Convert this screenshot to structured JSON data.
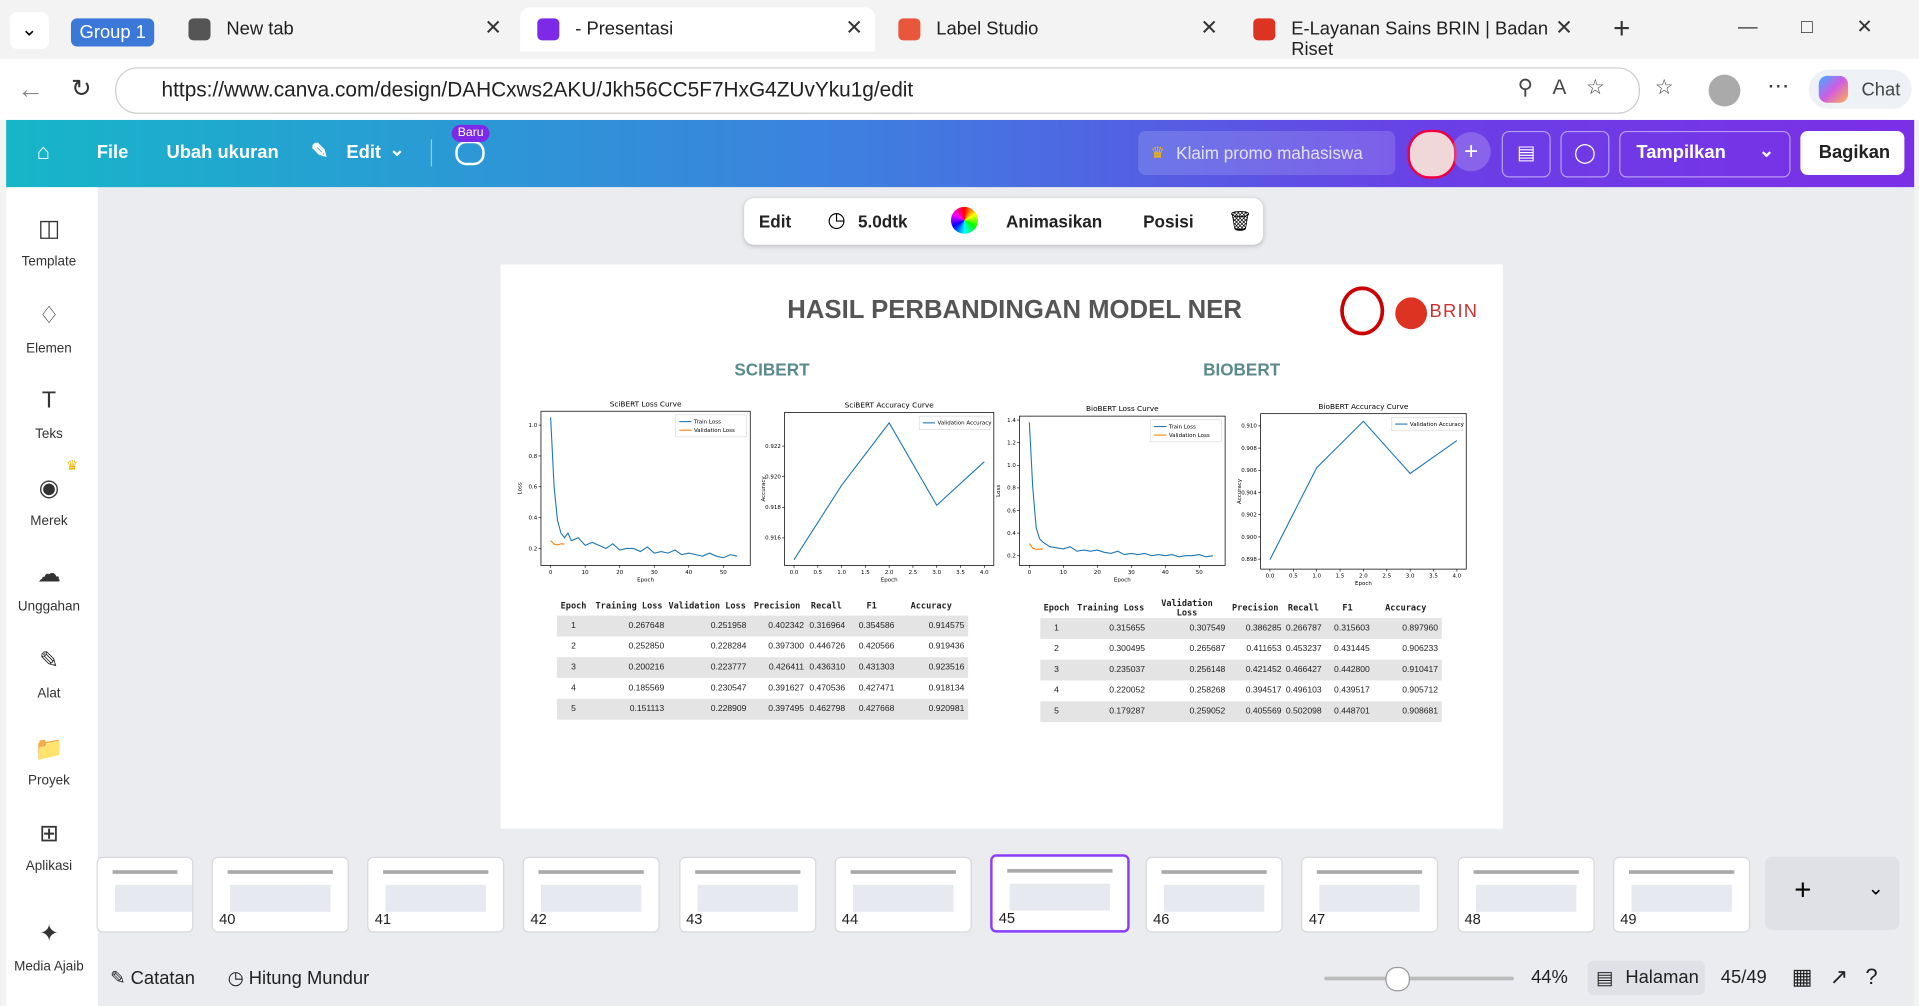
{
  "browser": {
    "tab_group": "Group 1",
    "tabs": [
      "New tab",
      "- Presentasi",
      "Label Studio",
      "E-Layanan Sains BRIN | Badan Riset"
    ],
    "url": "https://www.canva.com/design/DAHCxws2AKU/Jkh56CC5F7HxG4ZUvYku1g/edit",
    "chat": "Chat"
  },
  "editor": {
    "menu": [
      "File",
      "Ubah ukuran",
      "Edit"
    ],
    "badge": "Baru",
    "promo": "Klaim promo mahasiswa",
    "present": "Tampilkan",
    "share": "Bagikan",
    "element_toolbar": [
      "Edit",
      "5.0dtk",
      "Animasikan",
      "Posisi"
    ],
    "sidebar": [
      "Template",
      "Elemen",
      "Teks",
      "Merek",
      "Unggahan",
      "Alat",
      "Proyek",
      "Aplikasi",
      "Media Ajaib"
    ]
  },
  "slide": {
    "title": "HASIL PERBANDINGAN MODEL NER",
    "logo": "BRIN",
    "sections": [
      "SCIBERT",
      "BIOBERT"
    ],
    "table_columns": [
      "Epoch",
      "Training Loss",
      "Validation Loss",
      "Precision",
      "Recall",
      "F1",
      "Accuracy"
    ],
    "tables": [
      [
        [
          "1",
          "0.267648",
          "0.251958",
          "0.402342",
          "0.316964",
          "0.354586",
          "0.914575"
        ],
        [
          "2",
          "0.252850",
          "0.228284",
          "0.397300",
          "0.446726",
          "0.420566",
          "0.919436"
        ],
        [
          "3",
          "0.200216",
          "0.223777",
          "0.426411",
          "0.436310",
          "0.431303",
          "0.923516"
        ],
        [
          "4",
          "0.185569",
          "0.230547",
          "0.391627",
          "0.470536",
          "0.427471",
          "0.918134"
        ],
        [
          "5",
          "0.151113",
          "0.228909",
          "0.397495",
          "0.462798",
          "0.427668",
          "0.920981"
        ]
      ],
      [
        [
          "1",
          "0.315655",
          "0.307549",
          "0.386285",
          "0.266787",
          "0.315603",
          "0.897960"
        ],
        [
          "2",
          "0.300495",
          "0.265687",
          "0.411653",
          "0.453237",
          "0.431445",
          "0.906233"
        ],
        [
          "3",
          "0.235037",
          "0.256148",
          "0.421452",
          "0.466427",
          "0.442800",
          "0.910417"
        ],
        [
          "4",
          "0.220052",
          "0.258268",
          "0.394517",
          "0.496103",
          "0.439517",
          "0.905712"
        ],
        [
          "5",
          "0.179287",
          "0.259052",
          "0.405569",
          "0.502098",
          "0.448701",
          "0.908681"
        ]
      ]
    ]
  },
  "chart_data": [
    {
      "type": "line",
      "title": "SciBERT Loss Curve",
      "x_label": "Epoch",
      "y_label": "Loss",
      "legend": "upper right",
      "xlim": [
        -2.8,
        57.8
      ],
      "ylim": [
        0.09,
        1.09
      ],
      "xticks": [
        0,
        10,
        20,
        30,
        40,
        50
      ],
      "yticks": [
        0.2,
        0.4,
        0.6,
        0.8,
        {
          "value": 1,
          "label": "1.0"
        }
      ],
      "series": [
        {
          "name": "Train Loss",
          "color": "#1f77b4",
          "x": [
            0,
            1,
            2,
            3,
            4,
            5,
            6,
            8,
            10,
            12,
            14,
            16,
            18,
            20,
            22,
            24,
            26,
            28,
            30,
            32,
            34,
            36,
            38,
            40,
            42,
            44,
            46,
            48,
            50,
            52,
            54
          ],
          "values": [
            1.05,
            0.6,
            0.38,
            0.3,
            0.27,
            0.3,
            0.25,
            0.27,
            0.22,
            0.24,
            0.22,
            0.2,
            0.23,
            0.19,
            0.2,
            0.2,
            0.18,
            0.21,
            0.17,
            0.18,
            0.17,
            0.19,
            0.16,
            0.17,
            0.16,
            0.15,
            0.17,
            0.15,
            0.14,
            0.16,
            0.15
          ]
        },
        {
          "name": "Validation Loss",
          "color": "#ff7f0e",
          "x": [
            0,
            1,
            2,
            3,
            4
          ],
          "values": [
            0.251958,
            0.228284,
            0.223777,
            0.230547,
            0.228909
          ]
        }
      ]
    },
    {
      "type": "line",
      "title": "SciBERT Accuracy Curve",
      "x_label": "Epoch",
      "y_label": "Accuracy",
      "legend": "upper right",
      "xlim": [
        -0.2,
        4.2
      ],
      "ylim": [
        0.9142,
        0.9242
      ],
      "xticks": [
        {
          "value": 0,
          "label": "0.0"
        },
        0.5,
        {
          "value": 1,
          "label": "1.0"
        },
        1.5,
        {
          "value": 2,
          "label": "2.0"
        },
        2.5,
        {
          "value": 3,
          "label": "3.0"
        },
        3.5,
        {
          "value": 4,
          "label": "4.0"
        }
      ],
      "yticks": [
        0.916,
        0.918,
        {
          "value": 0.92,
          "label": "0.920"
        },
        0.922
      ],
      "series": [
        {
          "name": "Validation Accuracy",
          "color": "#1f77b4",
          "x": [
            0,
            1,
            2,
            3,
            4
          ],
          "values": [
            0.914575,
            0.919436,
            0.923516,
            0.918134,
            0.920981
          ]
        }
      ]
    },
    {
      "type": "line",
      "title": "BioBERT Loss Curve",
      "x_label": "Epoch",
      "y_label": "Loss",
      "legend": "upper right",
      "xlim": [
        -2.9,
        57.6
      ],
      "ylim": [
        0.114,
        1.435
      ],
      "xticks": [
        0,
        10,
        20,
        30,
        40,
        50
      ],
      "yticks": [
        0.2,
        0.4,
        0.6,
        0.8,
        {
          "value": 1,
          "label": "1.0"
        },
        1.2,
        1.4
      ],
      "series": [
        {
          "name": "Train Loss",
          "color": "#1f77b4",
          "x": [
            0,
            1,
            2,
            3,
            4,
            5,
            6,
            8,
            10,
            12,
            14,
            16,
            18,
            20,
            22,
            24,
            26,
            28,
            30,
            32,
            34,
            36,
            38,
            40,
            42,
            44,
            46,
            48,
            50,
            52,
            54
          ],
          "values": [
            1.38,
            0.8,
            0.45,
            0.35,
            0.32,
            0.3,
            0.28,
            0.27,
            0.26,
            0.28,
            0.24,
            0.25,
            0.24,
            0.25,
            0.23,
            0.22,
            0.24,
            0.21,
            0.22,
            0.21,
            0.22,
            0.2,
            0.21,
            0.2,
            0.21,
            0.19,
            0.2,
            0.2,
            0.21,
            0.19,
            0.2
          ]
        },
        {
          "name": "Validation Loss",
          "color": "#ff7f0e",
          "x": [
            0,
            1,
            2,
            3,
            4
          ],
          "values": [
            0.307549,
            0.265687,
            0.256148,
            0.258268,
            0.259052
          ]
        }
      ]
    },
    {
      "type": "line",
      "title": "BioBERT Accuracy Curve",
      "x_label": "Epoch",
      "y_label": "Accuracy",
      "legend": "upper right",
      "xlim": [
        -0.2,
        4.2
      ],
      "ylim": [
        0.8971,
        0.9111
      ],
      "xticks": [
        {
          "value": 0,
          "label": "0.0"
        },
        0.5,
        {
          "value": 1,
          "label": "1.0"
        },
        1.5,
        {
          "value": 2,
          "label": "2.0"
        },
        2.5,
        {
          "value": 3,
          "label": "3.0"
        },
        3.5,
        {
          "value": 4,
          "label": "4.0"
        }
      ],
      "yticks": [
        0.898,
        {
          "value": 0.9,
          "label": "0.900"
        },
        0.902,
        0.904,
        0.906,
        0.908,
        {
          "value": 0.91,
          "label": "0.910"
        }
      ],
      "series": [
        {
          "name": "Validation Accuracy",
          "color": "#1f77b4",
          "x": [
            0,
            1,
            2,
            3,
            4
          ],
          "values": [
            0.89796,
            0.906233,
            0.910417,
            0.905712,
            0.908681
          ]
        }
      ]
    }
  ],
  "thumbnails": {
    "pages": [
      40,
      41,
      42,
      43,
      44,
      45,
      46,
      47,
      48,
      49
    ],
    "current": 45
  },
  "footer": {
    "notes": "Catatan",
    "timer": "Hitung Mundur",
    "zoom": "44%",
    "view": "Halaman",
    "page": "45/49"
  }
}
